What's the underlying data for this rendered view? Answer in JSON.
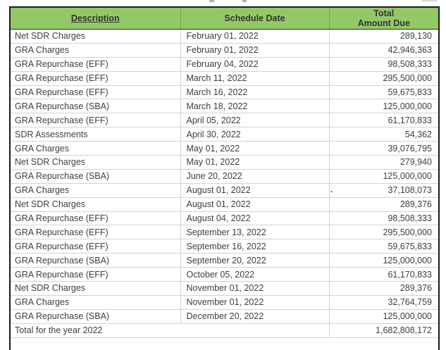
{
  "colors": {
    "header_bg": "#92c966",
    "outer_border": "#1a1a1a",
    "grid_line": "#d2d2d2",
    "text": "#3e3e3e"
  },
  "table": {
    "headers": {
      "description": "Description",
      "schedule_date": "Schedule Date",
      "amount_line1": "Total",
      "amount_line2": "Amount Due"
    },
    "rows": [
      {
        "description": "Net SDR Charges",
        "date": "February 01, 2022",
        "amount": "289,130"
      },
      {
        "description": "GRA Charges",
        "date": "February 01, 2022",
        "amount": "42,946,363"
      },
      {
        "description": "GRA Repurchase (EFF)",
        "date": "February 04, 2022",
        "amount": "98,508,333"
      },
      {
        "description": "GRA Repurchase (EFF)",
        "date": "March 11, 2022",
        "amount": "295,500,000"
      },
      {
        "description": "GRA Repurchase (EFF)",
        "date": "March 16, 2022",
        "amount": "59,675,833"
      },
      {
        "description": "GRA Repurchase (SBA)",
        "date": "March 18, 2022",
        "amount": "125,000,000"
      },
      {
        "description": "GRA Repurchase (EFF)",
        "date": "April 05, 2022",
        "amount": "61,170,833"
      },
      {
        "description": "SDR Assessments",
        "date": "April 30, 2022",
        "amount": "54,362"
      },
      {
        "description": "GRA Charges",
        "date": "May 01, 2022",
        "amount": "39,076,795"
      },
      {
        "description": "Net SDR Charges",
        "date": "May 01, 2022",
        "amount": "279,940"
      },
      {
        "description": "GRA Repurchase (SBA)",
        "date": "June 20, 2022",
        "amount": "125,000,000"
      },
      {
        "description": "GRA Charges",
        "date": "August 01, 2022",
        "amount": "37,108,073"
      },
      {
        "description": "Net SDR Charges",
        "date": "August 01, 2022",
        "amount": "289,376"
      },
      {
        "description": "GRA Repurchase (EFF)",
        "date": "August 04, 2022",
        "amount": "98,508,333"
      },
      {
        "description": "GRA Repurchase (EFF)",
        "date": "September 13, 2022",
        "amount": "295,500,000"
      },
      {
        "description": "GRA Repurchase (EFF)",
        "date": "September 16, 2022",
        "amount": "59,675,833"
      },
      {
        "description": "GRA Repurchase (SBA)",
        "date": "September 20, 2022",
        "amount": "125,000,000"
      },
      {
        "description": "GRA Repurchase (EFF)",
        "date": "October 05, 2022",
        "amount": "61,170,833"
      },
      {
        "description": "Net SDR Charges",
        "date": "November 01, 2022",
        "amount": "289,376"
      },
      {
        "description": "GRA Charges",
        "date": "November 01, 2022",
        "amount": "32,764,759"
      },
      {
        "description": "GRA Repurchase (SBA)",
        "date": "December 20, 2022",
        "amount": "125,000,000"
      }
    ],
    "total_row": {
      "label": "Total for the year 2022",
      "amount": "1,682,808,172"
    }
  },
  "artifacts": {
    "stray_mark": "."
  }
}
